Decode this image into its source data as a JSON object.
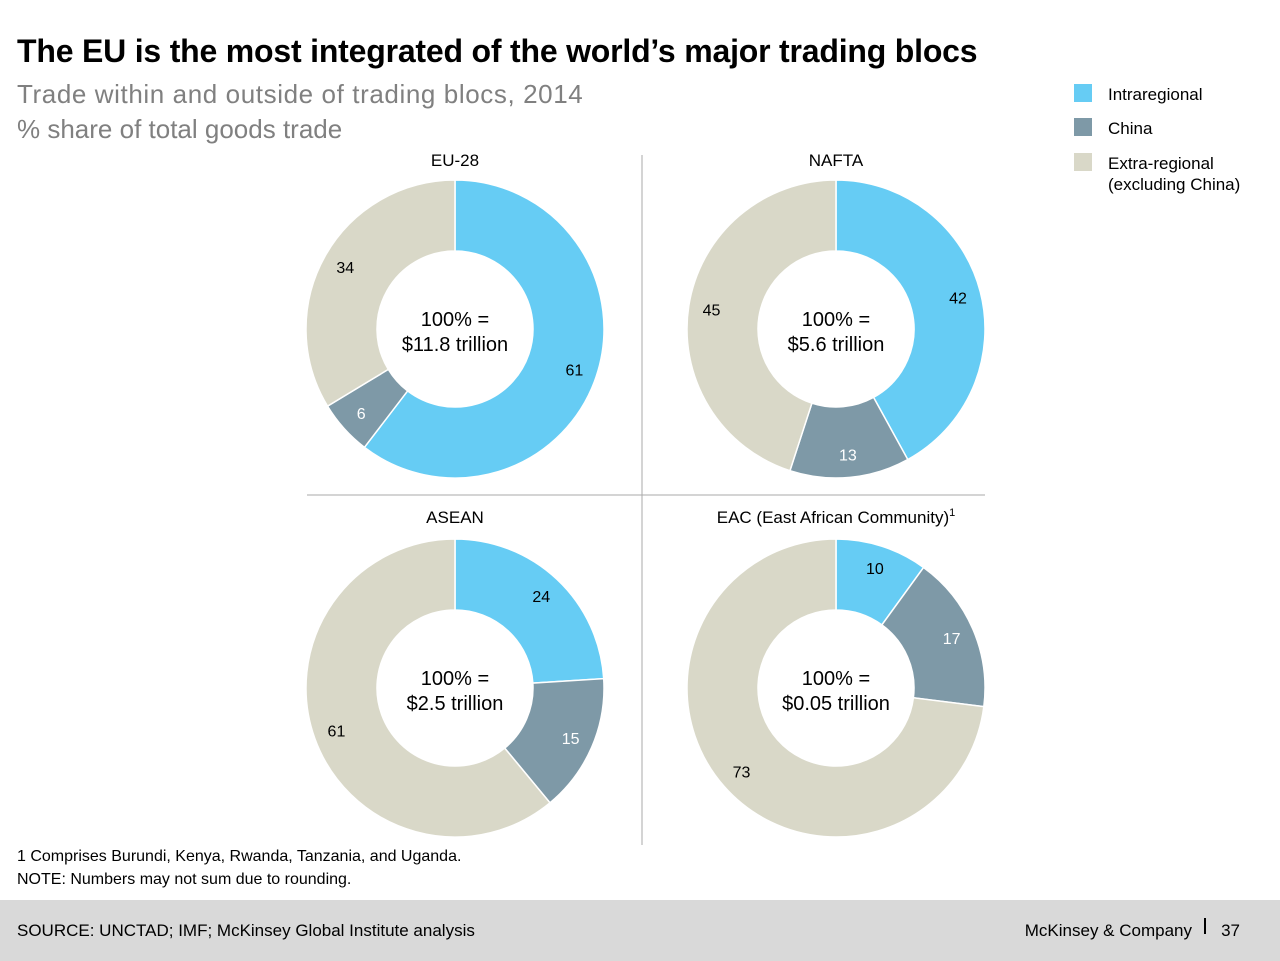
{
  "header": {
    "title": "The EU is the most integrated of the world’s major trading blocs",
    "subtitle": "Trade within and outside of trading blocs, 2014",
    "unit": "% share of total goods trade"
  },
  "colors": {
    "intraregional": "#66ccf4",
    "china": "#7e99a7",
    "extra_regional": "#d9d8c8"
  },
  "legend": [
    {
      "lines": [
        "Intraregional"
      ],
      "color": "#66ccf4"
    },
    {
      "lines": [
        "China"
      ],
      "color": "#7e99a7"
    },
    {
      "lines": [
        "Extra-regional",
        "(excluding China)"
      ],
      "color": "#d9d8c8"
    }
  ],
  "chart_data": [
    {
      "type": "pie",
      "title": "EU-28",
      "superscript": "",
      "center_label": [
        "100% =",
        "$11.8 trillion"
      ],
      "series": [
        {
          "name": "Intraregional",
          "value": 61
        },
        {
          "name": "China",
          "value": 6
        },
        {
          "name": "Extra-regional (excluding China)",
          "value": 34
        }
      ]
    },
    {
      "type": "pie",
      "title": "NAFTA",
      "superscript": "",
      "center_label": [
        "100% =",
        "$5.6 trillion"
      ],
      "series": [
        {
          "name": "Intraregional",
          "value": 42
        },
        {
          "name": "China",
          "value": 13
        },
        {
          "name": "Extra-regional (excluding China)",
          "value": 45
        }
      ]
    },
    {
      "type": "pie",
      "title": "ASEAN",
      "superscript": "",
      "center_label": [
        "100% =",
        "$2.5 trillion"
      ],
      "series": [
        {
          "name": "Intraregional",
          "value": 24
        },
        {
          "name": "China",
          "value": 15
        },
        {
          "name": "Extra-regional (excluding China)",
          "value": 61
        }
      ]
    },
    {
      "type": "pie",
      "title": "EAC (East African Community)",
      "superscript": "1",
      "center_label": [
        "100% =",
        "$0.05 trillion"
      ],
      "series": [
        {
          "name": "Intraregional",
          "value": 10
        },
        {
          "name": "China",
          "value": 17
        },
        {
          "name": "Extra-regional (excluding China)",
          "value": 73
        }
      ]
    }
  ],
  "footnotes": [
    "1 Comprises Burundi, Kenya, Rwanda, Tanzania, and Uganda.",
    "NOTE: Numbers may not sum due to rounding."
  ],
  "footer": {
    "source": "SOURCE: UNCTAD; IMF; McKinsey Global Institute analysis",
    "brand": "McKinsey & Company",
    "page": "37"
  }
}
